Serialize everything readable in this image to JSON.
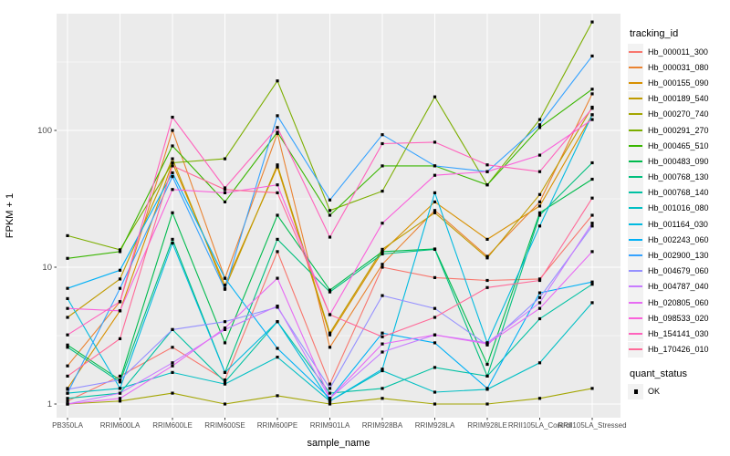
{
  "chart_data": {
    "type": "line",
    "title": "",
    "xlabel": "sample_name",
    "ylabel": "FPKM + 1",
    "y_scale": "log10",
    "y_ticks": [
      1,
      10,
      100
    ],
    "y_minor_ticks": [
      3.1623,
      31.623,
      316.23
    ],
    "ylim": [
      0.9,
      750
    ],
    "grid": true,
    "legend_position": "right",
    "marker": "filled-square",
    "marker_color": "#000000",
    "panel_background": "#EBEBEB",
    "grid_color": "#FFFFFF",
    "axis_text_color": "#4D4D4D",
    "x_categories": [
      "PB350LA",
      "RRIM600LA",
      "RRIM600LE",
      "RRIM600SE",
      "RRIM600PE",
      "RRIM901LA",
      "RRIM928BA",
      "RRIM928LA",
      "RRIM928LE",
      "RRII105LA_Control",
      "RRII105LA_Stressed"
    ],
    "series": [
      {
        "name": "Hb_000011_300",
        "color": "#F8766D",
        "values": [
          1.05,
          1.6,
          2.6,
          1.5,
          13,
          1.4,
          10,
          8.4,
          8,
          8.2,
          24
        ]
      },
      {
        "name": "Hb_000031_080",
        "color": "#EA8331",
        "values": [
          1.9,
          5.6,
          100,
          8.3,
          95,
          2.6,
          10.5,
          26,
          12,
          30,
          185
        ]
      },
      {
        "name": "Hb_000155_090",
        "color": "#D89000",
        "values": [
          1.3,
          4.8,
          58,
          7.4,
          54,
          3.2,
          13,
          30,
          16,
          28,
          130
        ]
      },
      {
        "name": "Hb_000189_540",
        "color": "#C09B00",
        "values": [
          4.3,
          8.2,
          62,
          7,
          56,
          3.3,
          13.5,
          25,
          11.7,
          34,
          148
        ]
      },
      {
        "name": "Hb_000270_740",
        "color": "#A3A500",
        "values": [
          1,
          1.05,
          1.2,
          1,
          1.15,
          1,
          1.1,
          1,
          1,
          1.1,
          1.3
        ]
      },
      {
        "name": "Hb_000291_270",
        "color": "#7CAE00",
        "values": [
          17,
          13.4,
          58,
          62,
          230,
          26,
          36,
          176,
          40,
          120,
          620
        ]
      },
      {
        "name": "Hb_000465_510",
        "color": "#39B600",
        "values": [
          11.6,
          13,
          77,
          30,
          97,
          24,
          55,
          55,
          40,
          105,
          200
        ]
      },
      {
        "name": "Hb_000483_090",
        "color": "#00BB4E",
        "values": [
          2.7,
          1.5,
          25,
          2.8,
          24,
          6.8,
          13,
          13.6,
          1.95,
          25,
          44
        ]
      },
      {
        "name": "Hb_000768_130",
        "color": "#00BF7D",
        "values": [
          2.6,
          1.45,
          16,
          1.7,
          16,
          6.6,
          12.5,
          13.5,
          1.6,
          24,
          58
        ]
      },
      {
        "name": "Hb_000768_140",
        "color": "#00C1A3",
        "values": [
          1.1,
          1.2,
          3.5,
          1.45,
          4,
          1.2,
          1.3,
          1.85,
          1.6,
          4.2,
          7.5
        ]
      },
      {
        "name": "Hb_001016_080",
        "color": "#00BFC4",
        "values": [
          1.2,
          1.3,
          1.7,
          1.4,
          2.2,
          1.05,
          1.75,
          1.22,
          1.28,
          2,
          5.5
        ]
      },
      {
        "name": "Hb_001164_030",
        "color": "#00BAE0",
        "values": [
          5.9,
          1.3,
          15,
          1.7,
          4,
          1.05,
          1.8,
          35,
          2.8,
          20,
          130
        ]
      },
      {
        "name": "Hb_002243_060",
        "color": "#00B0F6",
        "values": [
          7,
          9.5,
          49,
          8.3,
          2.55,
          1.1,
          3.3,
          2.8,
          1.3,
          6.5,
          7.8
        ]
      },
      {
        "name": "Hb_002900_130",
        "color": "#35A2FF",
        "values": [
          1.2,
          7,
          46,
          6.9,
          128,
          31,
          93,
          55,
          50,
          110,
          350
        ]
      },
      {
        "name": "Hb_004679_060",
        "color": "#9590FF",
        "values": [
          1.28,
          1.5,
          3.5,
          4,
          5.1,
          1.3,
          6.2,
          5,
          2.7,
          6,
          20
        ]
      },
      {
        "name": "Hb_004787_040",
        "color": "#C77CFF",
        "values": [
          1,
          1.2,
          2,
          3.5,
          5.2,
          1.1,
          2.4,
          3.2,
          2.8,
          5.5,
          21
        ]
      },
      {
        "name": "Hb_020805_060",
        "color": "#E76BF3",
        "values": [
          1,
          1.1,
          1.9,
          3.6,
          8.3,
          1.1,
          2.75,
          3.2,
          2.75,
          5,
          13
        ]
      },
      {
        "name": "Hb_098533_020",
        "color": "#FA62DB",
        "values": [
          5,
          4.8,
          37,
          35,
          40,
          4.5,
          21,
          47,
          50,
          66,
          120
        ]
      },
      {
        "name": "Hb_154141_030",
        "color": "#FF62BC",
        "values": [
          3.2,
          5.6,
          125,
          38,
          105,
          16.6,
          80,
          82,
          56,
          50,
          145
        ]
      },
      {
        "name": "Hb_170426_010",
        "color": "#FF6A98",
        "values": [
          1.6,
          3,
          55,
          37,
          35,
          4.5,
          3.1,
          4.3,
          7.1,
          8,
          32
        ]
      }
    ]
  },
  "legend": {
    "tracking_title": "tracking_id",
    "quant_title": "quant_status",
    "quant_items": [
      {
        "label": "OK"
      }
    ]
  }
}
